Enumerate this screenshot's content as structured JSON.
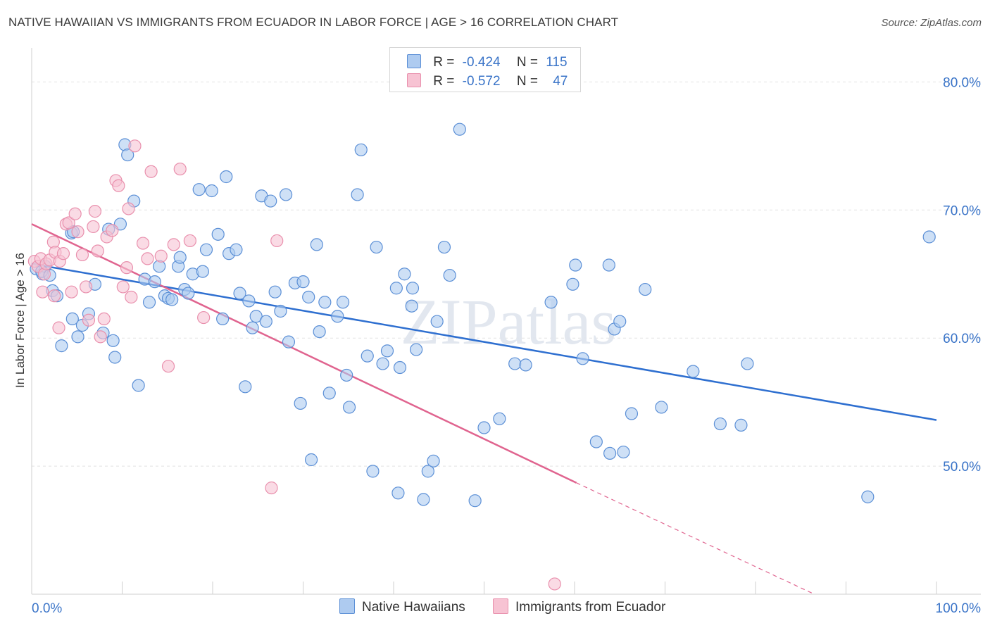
{
  "header": {
    "title": "NATIVE HAWAIIAN VS IMMIGRANTS FROM ECUADOR IN LABOR FORCE | AGE > 16 CORRELATION CHART",
    "source": "Source: ZipAtlas.com"
  },
  "watermark": "ZIPatlas",
  "legend": {
    "rows": [
      {
        "r_label": "R =",
        "r_value": "-0.424",
        "n_label": "N =",
        "n_value": "115"
      },
      {
        "r_label": "R =",
        "r_value": "-0.572",
        "n_label": "N =",
        "n_value": "47"
      }
    ]
  },
  "bottom_legend": [
    "Native Hawaiians",
    "Immigrants from Ecuador"
  ],
  "chart_data": {
    "type": "scatter",
    "xlabel": "",
    "ylabel": "In Labor Force | Age > 16",
    "xlim": [
      0,
      100
    ],
    "ylim": [
      40,
      82
    ],
    "x_tick_labels": [
      "0.0%",
      "100.0%"
    ],
    "y_ticks": [
      50,
      60,
      70,
      80
    ],
    "y_tick_labels": [
      "50.0%",
      "60.0%",
      "70.0%",
      "80.0%"
    ],
    "grid": true,
    "legend_position": "top-center",
    "colors": {
      "blue_fill": "#aecbf0",
      "blue_stroke": "#5b8fd6",
      "blue_line": "#2e6fd0",
      "pink_fill": "#f7c3d3",
      "pink_stroke": "#e990ad",
      "pink_line": "#e0648f",
      "axis_text": "#3a74c8"
    },
    "series": [
      {
        "name": "Native Hawaiians",
        "r": -0.424,
        "n": 115,
        "trend": {
          "x0": 0,
          "y0": 65.8,
          "x1": 100,
          "y1": 53.6
        },
        "points": [
          [
            0.5,
            65.4
          ],
          [
            1.2,
            65.0
          ],
          [
            1.5,
            65.6
          ],
          [
            2.3,
            63.7
          ],
          [
            2.8,
            63.3
          ],
          [
            3.3,
            59.4
          ],
          [
            4.4,
            68.2
          ],
          [
            4.6,
            68.3
          ],
          [
            4.5,
            61.5
          ],
          [
            5.1,
            60.1
          ],
          [
            5.6,
            61.0
          ],
          [
            6.3,
            61.9
          ],
          [
            7.0,
            64.2
          ],
          [
            7.9,
            60.4
          ],
          [
            8.5,
            68.5
          ],
          [
            9.0,
            59.8
          ],
          [
            9.2,
            58.5
          ],
          [
            9.8,
            68.9
          ],
          [
            10.3,
            75.1
          ],
          [
            10.6,
            74.3
          ],
          [
            11.3,
            70.7
          ],
          [
            11.8,
            56.3
          ],
          [
            12.5,
            64.6
          ],
          [
            13.0,
            62.8
          ],
          [
            13.6,
            64.4
          ],
          [
            14.1,
            65.6
          ],
          [
            14.7,
            63.3
          ],
          [
            15.1,
            63.1
          ],
          [
            15.5,
            63.0
          ],
          [
            16.2,
            65.6
          ],
          [
            16.4,
            66.3
          ],
          [
            16.9,
            63.8
          ],
          [
            17.3,
            63.5
          ],
          [
            17.8,
            65.0
          ],
          [
            18.5,
            71.6
          ],
          [
            18.9,
            65.2
          ],
          [
            19.3,
            66.9
          ],
          [
            19.9,
            71.5
          ],
          [
            20.6,
            68.1
          ],
          [
            21.1,
            61.5
          ],
          [
            21.5,
            72.6
          ],
          [
            21.8,
            66.6
          ],
          [
            22.6,
            66.9
          ],
          [
            23.0,
            63.5
          ],
          [
            23.6,
            56.2
          ],
          [
            24.0,
            62.9
          ],
          [
            24.4,
            60.8
          ],
          [
            24.8,
            61.7
          ],
          [
            25.4,
            71.1
          ],
          [
            25.9,
            61.3
          ],
          [
            26.4,
            70.7
          ],
          [
            26.9,
            63.6
          ],
          [
            27.5,
            62.1
          ],
          [
            28.1,
            71.2
          ],
          [
            28.4,
            59.7
          ],
          [
            29.1,
            64.3
          ],
          [
            29.7,
            54.9
          ],
          [
            30.0,
            64.4
          ],
          [
            30.6,
            63.2
          ],
          [
            30.9,
            50.5
          ],
          [
            31.5,
            67.3
          ],
          [
            31.8,
            60.5
          ],
          [
            32.4,
            62.8
          ],
          [
            32.9,
            55.7
          ],
          [
            33.8,
            61.7
          ],
          [
            34.4,
            62.8
          ],
          [
            34.8,
            57.1
          ],
          [
            35.1,
            54.6
          ],
          [
            36.0,
            71.2
          ],
          [
            36.4,
            74.7
          ],
          [
            37.1,
            58.6
          ],
          [
            37.7,
            49.6
          ],
          [
            38.1,
            67.1
          ],
          [
            38.8,
            58.0
          ],
          [
            39.3,
            59.0
          ],
          [
            40.3,
            63.9
          ],
          [
            40.5,
            47.9
          ],
          [
            40.7,
            57.7
          ],
          [
            41.2,
            65.0
          ],
          [
            42.0,
            62.5
          ],
          [
            42.1,
            63.9
          ],
          [
            42.5,
            59.1
          ],
          [
            43.3,
            47.4
          ],
          [
            43.8,
            49.6
          ],
          [
            44.4,
            50.4
          ],
          [
            44.8,
            61.3
          ],
          [
            45.6,
            67.1
          ],
          [
            46.2,
            64.9
          ],
          [
            47.3,
            76.3
          ],
          [
            49.0,
            47.3
          ],
          [
            50.0,
            53.0
          ],
          [
            51.7,
            53.7
          ],
          [
            53.4,
            58.0
          ],
          [
            54.6,
            57.9
          ],
          [
            57.4,
            62.8
          ],
          [
            59.8,
            64.2
          ],
          [
            60.1,
            65.7
          ],
          [
            60.9,
            58.4
          ],
          [
            62.4,
            51.9
          ],
          [
            63.8,
            65.7
          ],
          [
            63.9,
            51.0
          ],
          [
            64.4,
            60.7
          ],
          [
            65.0,
            61.3
          ],
          [
            65.4,
            51.1
          ],
          [
            66.3,
            54.1
          ],
          [
            67.8,
            63.8
          ],
          [
            69.6,
            54.6
          ],
          [
            73.1,
            57.4
          ],
          [
            76.1,
            53.3
          ],
          [
            78.4,
            53.2
          ],
          [
            79.1,
            58.0
          ],
          [
            92.4,
            47.6
          ],
          [
            99.2,
            67.9
          ],
          [
            1.1,
            65.2
          ],
          [
            2.0,
            64.9
          ]
        ]
      },
      {
        "name": "Immigrants from Ecuador",
        "r": -0.572,
        "n": 47,
        "trend": {
          "x0": 0,
          "y0": 68.9,
          "x1": 60.2,
          "y1": 48.7
        },
        "trend_dashed": {
          "x0": 60.2,
          "y0": 48.7,
          "x1": 86.5,
          "y1": 40
        },
        "points": [
          [
            0.3,
            66.0
          ],
          [
            0.7,
            65.6
          ],
          [
            1.0,
            66.2
          ],
          [
            1.4,
            65.0
          ],
          [
            1.6,
            65.8
          ],
          [
            2.0,
            66.1
          ],
          [
            2.4,
            67.5
          ],
          [
            2.6,
            66.7
          ],
          [
            3.0,
            60.8
          ],
          [
            3.1,
            66.0
          ],
          [
            3.5,
            66.6
          ],
          [
            3.8,
            68.9
          ],
          [
            4.1,
            69.0
          ],
          [
            4.4,
            63.6
          ],
          [
            4.8,
            69.7
          ],
          [
            5.1,
            68.3
          ],
          [
            5.6,
            66.5
          ],
          [
            6.0,
            64.0
          ],
          [
            6.3,
            61.4
          ],
          [
            6.8,
            68.7
          ],
          [
            7.0,
            69.9
          ],
          [
            7.3,
            66.8
          ],
          [
            7.6,
            60.1
          ],
          [
            8.0,
            61.5
          ],
          [
            8.3,
            67.9
          ],
          [
            8.9,
            68.4
          ],
          [
            9.3,
            72.3
          ],
          [
            9.6,
            71.9
          ],
          [
            10.1,
            64.0
          ],
          [
            10.5,
            65.5
          ],
          [
            10.7,
            70.1
          ],
          [
            11.0,
            63.2
          ],
          [
            11.4,
            75.0
          ],
          [
            12.3,
            67.4
          ],
          [
            12.8,
            66.2
          ],
          [
            13.2,
            73.0
          ],
          [
            14.3,
            66.4
          ],
          [
            15.1,
            57.8
          ],
          [
            15.7,
            67.3
          ],
          [
            16.4,
            73.2
          ],
          [
            17.5,
            67.6
          ],
          [
            19.0,
            61.6
          ],
          [
            26.5,
            48.3
          ],
          [
            27.1,
            67.6
          ],
          [
            57.8,
            40.8
          ],
          [
            1.2,
            63.6
          ],
          [
            2.5,
            63.3
          ]
        ]
      }
    ]
  }
}
